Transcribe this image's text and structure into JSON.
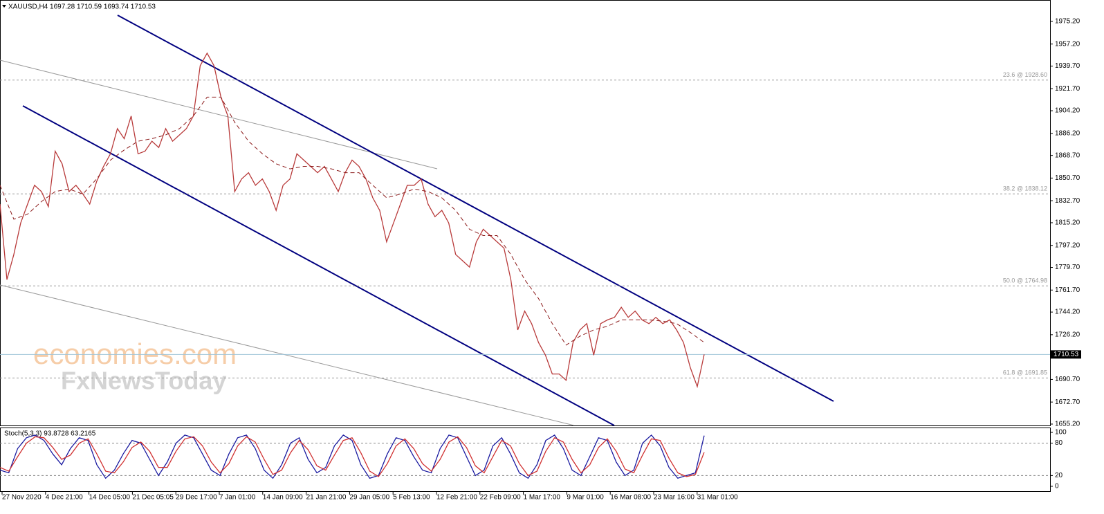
{
  "chart_data": [
    {
      "type": "line",
      "title": "XAUUSD,H4 1697.28 1710.59 1693.74 1710.53",
      "series": [
        {
          "color": "#b83a3a",
          "dash": false,
          "values": [
            1830,
            1770,
            1790,
            1815,
            1830,
            1845,
            1840,
            1828,
            1872,
            1862,
            1840,
            1845,
            1838,
            1830,
            1848,
            1860,
            1870,
            1890,
            1882,
            1900,
            1870,
            1872,
            1880,
            1875,
            1890,
            1880,
            1885,
            1890,
            1900,
            1940,
            1950,
            1940,
            1915,
            1900,
            1840,
            1850,
            1855,
            1845,
            1850,
            1840,
            1825,
            1845,
            1850,
            1870,
            1865,
            1860,
            1855,
            1860,
            1850,
            1840,
            1855,
            1865,
            1860,
            1850,
            1835,
            1825,
            1800,
            1815,
            1830,
            1845,
            1845,
            1850,
            1830,
            1820,
            1825,
            1815,
            1790,
            1785,
            1780,
            1800,
            1810,
            1805,
            1800,
            1795,
            1770,
            1730,
            1745,
            1735,
            1720,
            1710,
            1695,
            1695,
            1690,
            1720,
            1730,
            1735,
            1710,
            1735,
            1738,
            1740,
            1748,
            1740,
            1745,
            1738,
            1735,
            1740,
            1735,
            1738,
            1730,
            1720,
            1700,
            1685,
            1710.53
          ]
        },
        {
          "color": "#8b1a1a",
          "dash": true,
          "values": [
            1845,
            1818,
            1822,
            1832,
            1840,
            1842,
            1838,
            1850,
            1865,
            1873,
            1880,
            1882,
            1885,
            1890,
            1900,
            1915,
            1915,
            1895,
            1880,
            1870,
            1862,
            1858,
            1860,
            1860,
            1858,
            1855,
            1855,
            1845,
            1835,
            1838,
            1842,
            1840,
            1835,
            1825,
            1810,
            1805,
            1805,
            1790,
            1770,
            1755,
            1735,
            1718,
            1725,
            1730,
            1733,
            1738,
            1738,
            1738,
            1737,
            1735,
            1728,
            1720
          ]
        }
      ],
      "ylim": [
        1654.1,
        1992.2
      ],
      "yticks": [
        {
          "value": 1975.2,
          "label": "1975.20"
        },
        {
          "value": 1957.2,
          "label": "1957.20"
        },
        {
          "value": 1939.7,
          "label": "1939.70"
        },
        {
          "value": 1921.7,
          "label": "1921.70"
        },
        {
          "value": 1904.2,
          "label": "1904.20"
        },
        {
          "value": 1886.2,
          "label": "1886.20"
        },
        {
          "value": 1868.7,
          "label": "1868.70"
        },
        {
          "value": 1850.7,
          "label": "1850.70"
        },
        {
          "value": 1832.7,
          "label": "1832.70"
        },
        {
          "value": 1815.2,
          "label": "1815.20"
        },
        {
          "value": 1797.2,
          "label": "1797.20"
        },
        {
          "value": 1779.7,
          "label": "1779.70"
        },
        {
          "value": 1761.7,
          "label": "1761.70"
        },
        {
          "value": 1744.2,
          "label": "1744.20"
        },
        {
          "value": 1726.2,
          "label": "1726.20"
        },
        {
          "value": 1690.7,
          "label": "1690.70"
        },
        {
          "value": 1672.7,
          "label": "1672.70"
        },
        {
          "value": 1655.2,
          "label": "1655.20"
        }
      ],
      "time_labels": [
        "27 Nov 2020",
        "4 Dec 21:00",
        "14 Dec 05:00",
        "21 Dec 05:05",
        "29 Dec 17:00",
        "7 Jan 01:00",
        "14 Jan 09:00",
        "21 Jan 21:00",
        "29 Jan 05:00",
        "5 Feb 13:00",
        "12 Feb 21:00",
        "22 Feb 09:00",
        "1 Mar 17:00",
        "9 Mar 01:00",
        "16 Mar 08:00",
        "23 Mar 16:00",
        "31 Mar 01:00"
      ],
      "current_price": {
        "value": 1710.53,
        "label": "1710.53"
      },
      "fib_levels": [
        {
          "value": 1928.6,
          "label": "23.6 @ 1928.60"
        },
        {
          "value": 1838.12,
          "label": "38.2 @ 1838.12"
        },
        {
          "value": 1764.98,
          "label": "50.0 @ 1764.98"
        },
        {
          "value": 1691.85,
          "label": "61.8 @ 1691.85"
        }
      ],
      "watermark": [
        "economies.com",
        "FxNewsToday"
      ]
    },
    {
      "type": "line",
      "title": "Stoch(5,3,3) 93.8728 63.2165",
      "series": [
        {
          "color": "#1a1aa0",
          "dash": false,
          "values": [
            30,
            25,
            70,
            90,
            95,
            85,
            60,
            40,
            70,
            90,
            85,
            40,
            15,
            30,
            60,
            85,
            80,
            50,
            20,
            45,
            80,
            95,
            90,
            60,
            30,
            20,
            60,
            90,
            95,
            70,
            30,
            15,
            40,
            80,
            90,
            50,
            25,
            35,
            75,
            95,
            85,
            40,
            15,
            20,
            60,
            90,
            85,
            55,
            30,
            25,
            70,
            95,
            90,
            55,
            20,
            30,
            75,
            90,
            60,
            25,
            15,
            40,
            85,
            95,
            70,
            30,
            20,
            55,
            90,
            85,
            45,
            20,
            30,
            80,
            95,
            75,
            35,
            15,
            20,
            25,
            94
          ]
        },
        {
          "color": "#d03030",
          "dash": false,
          "values": [
            35,
            28,
            55,
            80,
            92,
            90,
            72,
            50,
            58,
            80,
            88,
            60,
            28,
            25,
            45,
            72,
            82,
            65,
            35,
            35,
            65,
            88,
            92,
            75,
            45,
            25,
            42,
            75,
            92,
            82,
            50,
            22,
            30,
            62,
            85,
            68,
            38,
            30,
            58,
            85,
            90,
            62,
            28,
            18,
            42,
            75,
            88,
            70,
            42,
            28,
            50,
            82,
            92,
            72,
            38,
            25,
            55,
            85,
            75,
            42,
            20,
            28,
            65,
            90,
            82,
            50,
            25,
            40,
            72,
            88,
            65,
            32,
            25,
            58,
            88,
            85,
            52,
            25,
            18,
            22,
            63
          ]
        }
      ],
      "ylim": [
        -10.3,
        109
      ],
      "yticks": [
        100,
        80,
        20,
        0
      ],
      "levels": [
        80,
        20
      ]
    }
  ]
}
